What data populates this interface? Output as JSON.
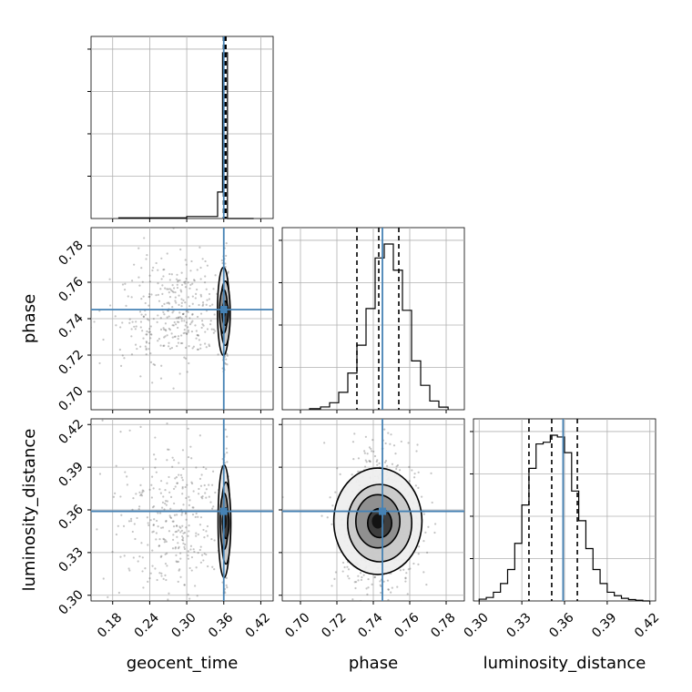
{
  "chart_data": {
    "type": "corner",
    "parameters": [
      "geocent_time",
      "phase",
      "luminosity_distance"
    ],
    "truths": {
      "geocent_time": 0.36,
      "phase": 0.745,
      "luminosity_distance": 0.359
    },
    "truth_color": "#4682b4",
    "grid": true,
    "axes": {
      "geocent_time": {
        "lim": [
          0.145,
          0.44
        ],
        "ticks": [
          "0.18",
          "0.24",
          "0.30",
          "0.36",
          "0.42"
        ]
      },
      "phase": {
        "lim": [
          0.69,
          0.79
        ],
        "ticks": [
          "0.70",
          "0.72",
          "0.74",
          "0.76",
          "0.78"
        ]
      },
      "luminosity_distance": {
        "lim": [
          0.296,
          0.424
        ],
        "ticks": [
          "0.30",
          "0.33",
          "0.36",
          "0.39",
          "0.42"
        ]
      }
    },
    "diagonal": {
      "geocent_time": {
        "quantiles": [
          0.3595,
          0.3615,
          0.3635
        ],
        "hist_x": [
          0.19,
          0.3,
          0.35,
          0.358,
          0.366,
          0.372
        ],
        "hist_y": [
          0.004,
          0.012,
          0.16,
          1.0,
          0.0,
          0.0
        ]
      },
      "phase": {
        "quantiles": [
          0.731,
          0.743,
          0.754
        ],
        "hist_x": [
          0.705,
          0.711,
          0.716,
          0.721,
          0.726,
          0.731,
          0.736,
          0.741,
          0.746,
          0.751,
          0.756,
          0.761,
          0.766,
          0.771,
          0.776
        ],
        "hist_y": [
          0.006,
          0.016,
          0.04,
          0.1,
          0.21,
          0.37,
          0.58,
          0.87,
          0.95,
          0.8,
          0.57,
          0.28,
          0.14,
          0.05,
          0.015
        ]
      },
      "luminosity_distance": {
        "quantiles": [
          0.335,
          0.351,
          0.369
        ],
        "hist_x": [
          0.3,
          0.305,
          0.31,
          0.315,
          0.32,
          0.325,
          0.33,
          0.335,
          0.34,
          0.345,
          0.35,
          0.355,
          0.36,
          0.365,
          0.37,
          0.375,
          0.38,
          0.385,
          0.39,
          0.395,
          0.4,
          0.405,
          0.41,
          0.415
        ],
        "hist_y": [
          0.01,
          0.02,
          0.05,
          0.1,
          0.18,
          0.33,
          0.55,
          0.76,
          0.9,
          0.91,
          0.95,
          0.94,
          0.85,
          0.63,
          0.46,
          0.3,
          0.18,
          0.1,
          0.05,
          0.03,
          0.015,
          0.008,
          0.004,
          0.0
        ]
      }
    },
    "pairs": [
      {
        "x": "geocent_time",
        "y": "phase",
        "center": [
          0.361,
          0.744
        ],
        "sd": [
          0.0025,
          0.011
        ],
        "tail": "left"
      },
      {
        "x": "geocent_time",
        "y": "luminosity_distance",
        "center": [
          0.362,
          0.352
        ],
        "sd": [
          0.0025,
          0.018
        ],
        "tail": "left"
      },
      {
        "x": "phase",
        "y": "luminosity_distance",
        "center": [
          0.743,
          0.352
        ],
        "sd": [
          0.011,
          0.017
        ],
        "tail": "none"
      }
    ]
  }
}
